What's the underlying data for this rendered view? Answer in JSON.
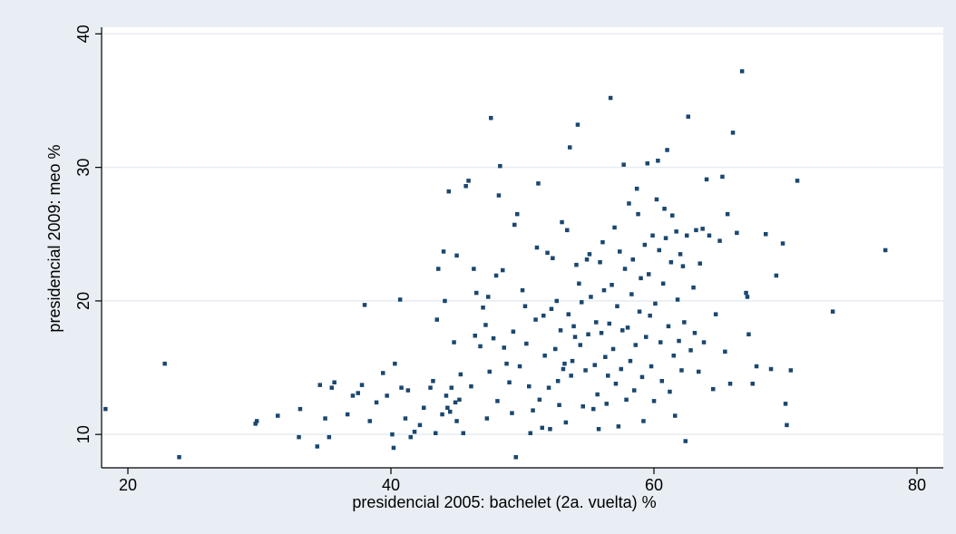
{
  "chart_data": {
    "type": "scatter",
    "title": "",
    "xlabel": "presidencial 2005: bachelet (2a. vuelta) %",
    "ylabel": "presidencial 2009: meo %",
    "xlim": [
      18,
      82
    ],
    "ylim": [
      7.5,
      40.5
    ],
    "x_ticks": [
      20,
      40,
      60,
      80
    ],
    "y_ticks": [
      10,
      20,
      30,
      40
    ],
    "grid": true,
    "colors": {
      "outer": "#e8eef3",
      "plot": "#ffffff",
      "grid": "#e6ecf1",
      "marker": "#1a476f",
      "axis": "#000000"
    },
    "points": [
      [
        18.3,
        11.9
      ],
      [
        22.8,
        15.3
      ],
      [
        23.9,
        8.3
      ],
      [
        29.7,
        10.8
      ],
      [
        29.8,
        11.0
      ],
      [
        31.4,
        11.4
      ],
      [
        33.0,
        9.8
      ],
      [
        33.1,
        11.9
      ],
      [
        34.4,
        9.1
      ],
      [
        34.6,
        13.7
      ],
      [
        35.0,
        11.2
      ],
      [
        35.3,
        9.8
      ],
      [
        35.5,
        13.5
      ],
      [
        35.7,
        13.9
      ],
      [
        36.7,
        11.5
      ],
      [
        37.1,
        12.9
      ],
      [
        37.5,
        13.1
      ],
      [
        37.8,
        13.7
      ],
      [
        38.0,
        19.7
      ],
      [
        38.4,
        11.0
      ],
      [
        38.9,
        12.4
      ],
      [
        39.4,
        14.6
      ],
      [
        39.7,
        12.9
      ],
      [
        40.1,
        10.0
      ],
      [
        40.2,
        9.0
      ],
      [
        40.3,
        15.3
      ],
      [
        40.7,
        20.1
      ],
      [
        40.8,
        13.5
      ],
      [
        41.1,
        11.2
      ],
      [
        41.3,
        13.3
      ],
      [
        41.5,
        9.8
      ],
      [
        41.8,
        10.2
      ],
      [
        42.2,
        10.7
      ],
      [
        42.5,
        12.0
      ],
      [
        43.0,
        13.5
      ],
      [
        43.2,
        14.0
      ],
      [
        43.4,
        10.1
      ],
      [
        43.5,
        18.6
      ],
      [
        43.6,
        22.4
      ],
      [
        43.9,
        11.5
      ],
      [
        44.0,
        23.7
      ],
      [
        44.1,
        20.0
      ],
      [
        44.2,
        12.9
      ],
      [
        44.3,
        12.0
      ],
      [
        44.4,
        28.2
      ],
      [
        44.5,
        11.7
      ],
      [
        44.6,
        13.5
      ],
      [
        44.8,
        16.9
      ],
      [
        44.9,
        12.4
      ],
      [
        45.0,
        23.4
      ],
      [
        45.0,
        11.0
      ],
      [
        45.2,
        12.6
      ],
      [
        45.3,
        14.5
      ],
      [
        45.5,
        10.1
      ],
      [
        45.7,
        28.6
      ],
      [
        45.9,
        29.0
      ],
      [
        46.1,
        13.6
      ],
      [
        46.3,
        22.4
      ],
      [
        46.4,
        17.4
      ],
      [
        46.5,
        20.6
      ],
      [
        46.8,
        16.6
      ],
      [
        47.0,
        19.5
      ],
      [
        47.2,
        18.2
      ],
      [
        47.3,
        11.2
      ],
      [
        47.4,
        20.3
      ],
      [
        47.5,
        14.7
      ],
      [
        47.6,
        33.7
      ],
      [
        47.8,
        17.2
      ],
      [
        48.0,
        21.9
      ],
      [
        48.1,
        12.5
      ],
      [
        48.2,
        27.9
      ],
      [
        48.3,
        30.1
      ],
      [
        48.5,
        22.3
      ],
      [
        48.6,
        16.5
      ],
      [
        48.8,
        15.3
      ],
      [
        49.0,
        13.9
      ],
      [
        49.2,
        11.6
      ],
      [
        49.3,
        17.7
      ],
      [
        49.4,
        25.7
      ],
      [
        49.5,
        8.3
      ],
      [
        49.6,
        26.5
      ],
      [
        49.8,
        15.1
      ],
      [
        50.0,
        20.8
      ],
      [
        50.2,
        19.6
      ],
      [
        50.3,
        16.8
      ],
      [
        50.5,
        13.6
      ],
      [
        50.6,
        10.1
      ],
      [
        50.8,
        11.8
      ],
      [
        51.0,
        18.6
      ],
      [
        51.1,
        24.0
      ],
      [
        51.2,
        28.8
      ],
      [
        51.3,
        12.6
      ],
      [
        51.5,
        10.5
      ],
      [
        51.6,
        18.9
      ],
      [
        51.7,
        15.9
      ],
      [
        51.9,
        23.6
      ],
      [
        52.0,
        13.5
      ],
      [
        52.1,
        10.4
      ],
      [
        52.2,
        19.4
      ],
      [
        52.3,
        23.2
      ],
      [
        52.5,
        16.4
      ],
      [
        52.6,
        20.0
      ],
      [
        52.7,
        14.0
      ],
      [
        52.8,
        12.2
      ],
      [
        52.9,
        17.8
      ],
      [
        53.0,
        25.9
      ],
      [
        53.1,
        14.9
      ],
      [
        53.2,
        15.3
      ],
      [
        53.3,
        10.9
      ],
      [
        53.4,
        25.3
      ],
      [
        53.5,
        19.0
      ],
      [
        53.6,
        31.5
      ],
      [
        53.7,
        14.4
      ],
      [
        53.8,
        15.5
      ],
      [
        53.9,
        18.1
      ],
      [
        54.0,
        17.3
      ],
      [
        54.1,
        22.7
      ],
      [
        54.2,
        33.2
      ],
      [
        54.3,
        21.3
      ],
      [
        54.4,
        16.7
      ],
      [
        54.5,
        19.9
      ],
      [
        54.6,
        12.1
      ],
      [
        54.8,
        14.8
      ],
      [
        54.9,
        23.1
      ],
      [
        55.0,
        17.5
      ],
      [
        55.1,
        23.5
      ],
      [
        55.2,
        20.3
      ],
      [
        55.4,
        11.9
      ],
      [
        55.5,
        15.2
      ],
      [
        55.6,
        18.4
      ],
      [
        55.7,
        13.0
      ],
      [
        55.8,
        10.4
      ],
      [
        55.9,
        22.9
      ],
      [
        56.0,
        17.6
      ],
      [
        56.1,
        24.4
      ],
      [
        56.2,
        20.8
      ],
      [
        56.3,
        15.8
      ],
      [
        56.4,
        12.3
      ],
      [
        56.5,
        14.4
      ],
      [
        56.6,
        18.3
      ],
      [
        56.7,
        35.2
      ],
      [
        56.8,
        21.2
      ],
      [
        56.9,
        16.4
      ],
      [
        57.0,
        25.5
      ],
      [
        57.1,
        13.8
      ],
      [
        57.2,
        19.6
      ],
      [
        57.3,
        10.6
      ],
      [
        57.4,
        23.7
      ],
      [
        57.5,
        14.9
      ],
      [
        57.6,
        17.8
      ],
      [
        57.7,
        30.2
      ],
      [
        57.8,
        22.4
      ],
      [
        57.9,
        12.6
      ],
      [
        58.0,
        18.0
      ],
      [
        58.1,
        27.3
      ],
      [
        58.2,
        15.5
      ],
      [
        58.3,
        20.5
      ],
      [
        58.4,
        23.1
      ],
      [
        58.5,
        13.3
      ],
      [
        58.6,
        16.7
      ],
      [
        58.7,
        28.4
      ],
      [
        58.8,
        26.5
      ],
      [
        58.9,
        19.2
      ],
      [
        59.0,
        21.7
      ],
      [
        59.1,
        14.3
      ],
      [
        59.2,
        11.0
      ],
      [
        59.3,
        24.2
      ],
      [
        59.4,
        17.3
      ],
      [
        59.5,
        30.3
      ],
      [
        59.6,
        22.0
      ],
      [
        59.7,
        18.9
      ],
      [
        59.8,
        15.1
      ],
      [
        59.9,
        24.9
      ],
      [
        60.0,
        12.5
      ],
      [
        60.1,
        19.8
      ],
      [
        60.2,
        27.6
      ],
      [
        60.3,
        30.5
      ],
      [
        60.4,
        23.8
      ],
      [
        60.5,
        16.9
      ],
      [
        60.6,
        14.0
      ],
      [
        60.7,
        21.3
      ],
      [
        60.8,
        26.9
      ],
      [
        60.9,
        24.7
      ],
      [
        61.0,
        31.3
      ],
      [
        61.1,
        18.1
      ],
      [
        61.2,
        13.2
      ],
      [
        61.3,
        22.9
      ],
      [
        61.4,
        26.4
      ],
      [
        61.5,
        15.9
      ],
      [
        61.6,
        11.4
      ],
      [
        61.7,
        25.2
      ],
      [
        61.8,
        20.1
      ],
      [
        61.9,
        17.0
      ],
      [
        62.0,
        23.5
      ],
      [
        62.1,
        14.8
      ],
      [
        62.2,
        22.6
      ],
      [
        62.3,
        18.4
      ],
      [
        62.4,
        9.5
      ],
      [
        62.5,
        24.9
      ],
      [
        62.6,
        33.8
      ],
      [
        62.8,
        16.3
      ],
      [
        63.0,
        21.0
      ],
      [
        63.1,
        17.6
      ],
      [
        63.2,
        25.3
      ],
      [
        63.4,
        14.7
      ],
      [
        63.5,
        22.8
      ],
      [
        63.7,
        25.4
      ],
      [
        63.8,
        16.9
      ],
      [
        64.0,
        29.1
      ],
      [
        64.2,
        24.9
      ],
      [
        64.5,
        13.4
      ],
      [
        64.7,
        19.0
      ],
      [
        65.0,
        24.5
      ],
      [
        65.2,
        29.3
      ],
      [
        65.4,
        16.2
      ],
      [
        65.6,
        26.5
      ],
      [
        65.8,
        13.8
      ],
      [
        66.0,
        32.6
      ],
      [
        66.3,
        25.1
      ],
      [
        66.7,
        37.2
      ],
      [
        67.0,
        20.6
      ],
      [
        67.1,
        20.3
      ],
      [
        67.2,
        17.5
      ],
      [
        67.5,
        13.8
      ],
      [
        67.8,
        15.1
      ],
      [
        68.5,
        25.0
      ],
      [
        68.9,
        14.9
      ],
      [
        69.3,
        21.9
      ],
      [
        69.8,
        24.3
      ],
      [
        70.0,
        12.3
      ],
      [
        70.1,
        10.7
      ],
      [
        70.4,
        14.8
      ],
      [
        70.9,
        29.0
      ],
      [
        73.6,
        19.2
      ],
      [
        77.6,
        23.8
      ]
    ]
  }
}
